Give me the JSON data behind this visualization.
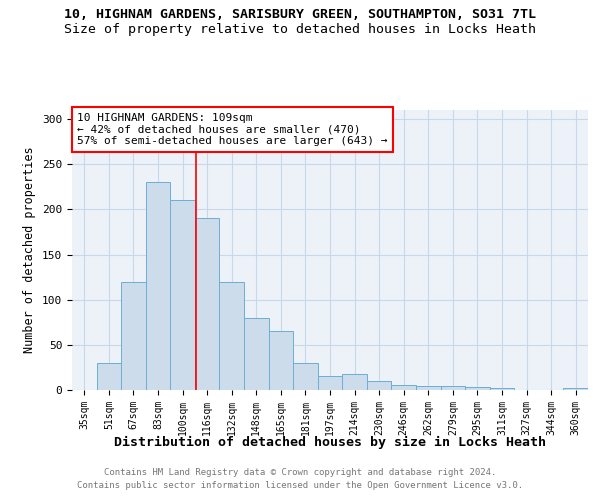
{
  "title1": "10, HIGHNAM GARDENS, SARISBURY GREEN, SOUTHAMPTON, SO31 7TL",
  "title2": "Size of property relative to detached houses in Locks Heath",
  "xlabel": "Distribution of detached houses by size in Locks Heath",
  "ylabel": "Number of detached properties",
  "bar_labels": [
    "35sqm",
    "51sqm",
    "67sqm",
    "83sqm",
    "100sqm",
    "116sqm",
    "132sqm",
    "148sqm",
    "165sqm",
    "181sqm",
    "197sqm",
    "214sqm",
    "230sqm",
    "246sqm",
    "262sqm",
    "279sqm",
    "295sqm",
    "311sqm",
    "327sqm",
    "344sqm",
    "360sqm"
  ],
  "bar_heights": [
    0,
    30,
    120,
    230,
    210,
    190,
    120,
    80,
    65,
    30,
    15,
    18,
    10,
    6,
    4,
    4,
    3,
    2,
    0,
    0,
    2
  ],
  "bar_color": "#ccdcea",
  "bar_edgecolor": "#6aaed6",
  "grid_color": "#c8d8e8",
  "bg_color": "#edf2f8",
  "red_line_x": 4.56,
  "annotation_text": "10 HIGHNAM GARDENS: 109sqm\n← 42% of detached houses are smaller (470)\n57% of semi-detached houses are larger (643) →",
  "annotation_box_facecolor": "white",
  "annotation_box_edgecolor": "red",
  "footer1": "Contains HM Land Registry data © Crown copyright and database right 2024.",
  "footer2": "Contains public sector information licensed under the Open Government Licence v3.0.",
  "ylim": [
    0,
    310
  ],
  "yticks": [
    0,
    50,
    100,
    150,
    200,
    250,
    300
  ],
  "title1_fontsize": 9.5,
  "title2_fontsize": 9.5,
  "xlabel_fontsize": 9.5,
  "ylabel_fontsize": 8.5,
  "tick_fontsize": 7,
  "footer_fontsize": 6.5,
  "annotation_fontsize": 8
}
